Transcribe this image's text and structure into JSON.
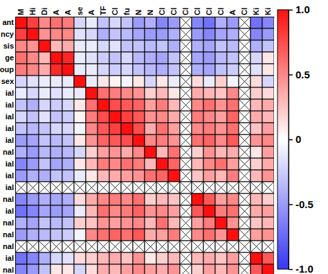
{
  "chart_data": {
    "type": "heatmap",
    "rows": [
      "ant",
      "ncy",
      "sis",
      "ge",
      "oup",
      "sex",
      "ial",
      "ial",
      "ial",
      "ial",
      "ial",
      "nal",
      "ial",
      "ial",
      "ial",
      "nal",
      "ial",
      "nal",
      "nal",
      "nal",
      "ial",
      "nal"
    ],
    "columns": [
      "M",
      "Hi",
      "Di",
      "A",
      "A",
      "se",
      "A",
      "TF",
      "Cl",
      "fu",
      "N",
      "N",
      "Cl",
      "Cl",
      "Cl",
      "Cl",
      "Cl",
      "Cl",
      "A",
      "Cl",
      "Ki",
      "Ki"
    ],
    "cells": [
      [
        1,
        0.8,
        0.5,
        0.6,
        0.55,
        -0.2,
        -0.1,
        -0.3,
        -0.2,
        -0.3,
        -0.5,
        -0.4,
        -0.6,
        -0.5,
        null,
        -0.6,
        -0.7,
        -0.4,
        -0.5,
        null,
        -0.7,
        -0.6
      ],
      [
        0.8,
        1,
        0.45,
        0.5,
        0.5,
        -0.15,
        -0.2,
        -0.4,
        -0.3,
        -0.35,
        -0.45,
        -0.5,
        -0.5,
        -0.4,
        null,
        -0.5,
        -0.6,
        -0.45,
        -0.4,
        null,
        -0.6,
        -0.5
      ],
      [
        0.5,
        0.45,
        1,
        0.3,
        0.35,
        -0.1,
        -0.1,
        -0.2,
        -0.15,
        -0.3,
        -0.3,
        -0.35,
        -0.3,
        -0.4,
        null,
        -0.4,
        -0.45,
        -0.3,
        -0.35,
        null,
        -0.4,
        -0.3
      ],
      [
        0.6,
        0.5,
        0.3,
        1,
        0.9,
        -0.1,
        -0.15,
        -0.25,
        -0.3,
        -0.2,
        -0.35,
        -0.4,
        -0.45,
        -0.3,
        null,
        -0.45,
        -0.5,
        -0.35,
        -0.3,
        null,
        -0.2,
        0.1
      ],
      [
        0.55,
        0.5,
        0.35,
        0.9,
        1,
        -0.1,
        -0.1,
        -0.2,
        -0.25,
        -0.2,
        -0.3,
        -0.35,
        -0.4,
        -0.3,
        null,
        -0.4,
        -0.45,
        -0.3,
        -0.25,
        null,
        -0.15,
        0.1
      ],
      [
        -0.2,
        -0.15,
        -0.1,
        -0.1,
        -0.1,
        1,
        -0.1,
        0.1,
        0.05,
        -0.05,
        0.1,
        -0.2,
        0.1,
        -0.1,
        null,
        0.15,
        -0.1,
        0.2,
        -0.05,
        null,
        0.15,
        -0.2
      ],
      [
        -0.1,
        -0.2,
        -0.1,
        -0.15,
        -0.1,
        -0.1,
        1,
        0.6,
        0.55,
        0.5,
        0.45,
        0.2,
        0.3,
        0.1,
        null,
        0.35,
        0.3,
        0.25,
        0.5,
        null,
        0.2,
        0.15
      ],
      [
        -0.3,
        -0.4,
        -0.2,
        -0.25,
        -0.2,
        0.1,
        0.6,
        1,
        0.75,
        0.7,
        0.65,
        0.4,
        0.55,
        0.3,
        null,
        0.5,
        0.6,
        0.45,
        0.6,
        null,
        0.3,
        0.35
      ],
      [
        -0.2,
        -0.3,
        -0.15,
        -0.3,
        -0.25,
        0.05,
        0.55,
        0.75,
        1,
        0.8,
        0.7,
        0.45,
        0.5,
        0.35,
        null,
        0.55,
        0.5,
        0.4,
        0.65,
        null,
        0.35,
        0.3
      ],
      [
        -0.3,
        -0.35,
        -0.3,
        -0.2,
        -0.2,
        -0.05,
        0.5,
        0.7,
        0.8,
        1,
        0.75,
        0.35,
        0.6,
        0.4,
        null,
        0.5,
        0.55,
        0.45,
        0.6,
        null,
        0.25,
        0.4
      ],
      [
        -0.5,
        -0.45,
        -0.3,
        -0.35,
        -0.3,
        0.1,
        0.45,
        0.65,
        0.7,
        0.75,
        1,
        0.5,
        0.55,
        0.45,
        null,
        0.6,
        0.65,
        0.5,
        0.7,
        null,
        0.45,
        0.5
      ],
      [
        -0.4,
        -0.5,
        -0.35,
        -0.4,
        -0.35,
        -0.2,
        0.2,
        0.4,
        0.45,
        0.35,
        0.5,
        1,
        0.3,
        0.6,
        null,
        0.2,
        0.45,
        0.3,
        0.35,
        null,
        0.1,
        0.4
      ],
      [
        -0.6,
        -0.5,
        -0.3,
        -0.45,
        -0.4,
        0.1,
        0.3,
        0.55,
        0.5,
        0.6,
        0.55,
        0.3,
        1,
        0.65,
        null,
        0.3,
        0.5,
        0.6,
        0.4,
        null,
        0.2,
        0.35
      ],
      [
        -0.5,
        -0.4,
        -0.4,
        -0.3,
        -0.3,
        -0.1,
        0.1,
        0.3,
        0.35,
        0.4,
        0.45,
        0.6,
        0.65,
        1,
        null,
        0.25,
        0.4,
        0.3,
        0.55,
        null,
        0.3,
        0.45
      ],
      [
        null,
        null,
        null,
        null,
        null,
        null,
        null,
        null,
        null,
        null,
        null,
        null,
        null,
        null,
        null,
        null,
        null,
        null,
        null,
        null,
        null,
        null
      ],
      [
        -0.6,
        -0.5,
        -0.4,
        -0.45,
        -0.4,
        0.15,
        0.35,
        0.5,
        0.55,
        0.5,
        0.6,
        0.2,
        0.3,
        0.25,
        null,
        1,
        0.7,
        0.4,
        0.5,
        null,
        0.3,
        0.2
      ],
      [
        -0.7,
        -0.6,
        -0.45,
        -0.5,
        -0.45,
        -0.1,
        0.3,
        0.6,
        0.5,
        0.55,
        0.65,
        0.45,
        0.5,
        0.4,
        null,
        0.7,
        1,
        0.55,
        0.6,
        null,
        0.35,
        0.4
      ],
      [
        -0.4,
        -0.45,
        -0.3,
        -0.35,
        -0.3,
        0.2,
        0.25,
        0.45,
        0.4,
        0.45,
        0.5,
        0.3,
        0.6,
        0.3,
        null,
        0.4,
        0.55,
        1,
        0.45,
        null,
        0.25,
        0.3
      ],
      [
        -0.5,
        -0.4,
        -0.35,
        -0.3,
        -0.25,
        -0.05,
        0.5,
        0.6,
        0.65,
        0.6,
        0.7,
        0.35,
        0.4,
        0.55,
        null,
        0.5,
        0.6,
        0.45,
        1,
        null,
        0.4,
        0.45
      ],
      [
        null,
        null,
        null,
        null,
        null,
        null,
        null,
        null,
        null,
        null,
        null,
        null,
        null,
        null,
        null,
        null,
        null,
        null,
        null,
        null,
        null,
        null
      ],
      [
        -0.7,
        -0.6,
        -0.4,
        -0.2,
        -0.15,
        0.15,
        0.2,
        0.3,
        0.35,
        0.25,
        0.45,
        0.1,
        0.2,
        0.3,
        null,
        0.3,
        0.35,
        0.25,
        0.4,
        null,
        1,
        0.7
      ],
      [
        -0.6,
        -0.5,
        -0.3,
        0.1,
        0.1,
        -0.2,
        0.15,
        0.35,
        0.3,
        0.4,
        0.5,
        0.4,
        0.35,
        0.45,
        null,
        0.2,
        0.4,
        0.3,
        0.45,
        null,
        0.7,
        1
      ]
    ],
    "colorbar": {
      "range": [
        -1,
        1
      ],
      "ticks": [
        {
          "value": 1,
          "label": "1.0"
        },
        0.5,
        0,
        -0.5,
        {
          "value": -1,
          "label": "-1.0"
        }
      ]
    }
  }
}
